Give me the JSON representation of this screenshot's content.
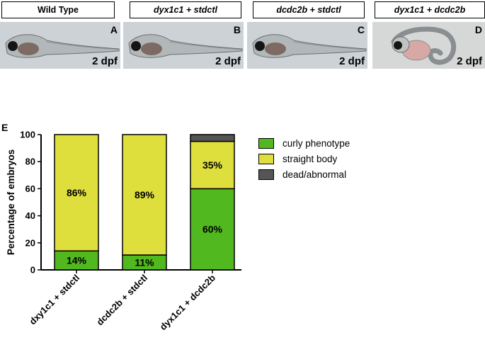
{
  "panels": [
    {
      "label": "Wild Type",
      "italic": false,
      "letter": "A",
      "stage": "2 dpf",
      "phenotype": "straight"
    },
    {
      "label": "dyx1c1 + stdctl",
      "italic": true,
      "letter": "B",
      "stage": "2 dpf",
      "phenotype": "straight"
    },
    {
      "label": "dcdc2b + stdctl",
      "italic": true,
      "letter": "C",
      "stage": "2 dpf",
      "phenotype": "straight"
    },
    {
      "label": "dyx1c1 + dcdc2b",
      "italic": true,
      "letter": "D",
      "stage": "2 dpf",
      "phenotype": "curly"
    }
  ],
  "panel_e_letter": "E",
  "colors": {
    "curly": "#52b81f",
    "straight": "#dede3c",
    "dead": "#555555"
  },
  "chart_data": {
    "type": "bar",
    "stacked": true,
    "categories": [
      "dxy1c1 + stdctl",
      "dcdc2b  + stdctl",
      "dyx1c1 + dcdc2b"
    ],
    "series": [
      {
        "name": "curly phenotype",
        "values": [
          14,
          11,
          60
        ],
        "labels": [
          "14%",
          "11%",
          "60%"
        ]
      },
      {
        "name": "straight body",
        "values": [
          86,
          89,
          35
        ],
        "labels": [
          "86%",
          "89%",
          "35%"
        ]
      },
      {
        "name": "dead/abnormal",
        "values": [
          0,
          0,
          5
        ],
        "labels": [
          "",
          "",
          ""
        ]
      }
    ],
    "ylabel": "Percentage of embryos",
    "yticks": [
      0,
      20,
      40,
      60,
      80,
      100
    ],
    "ylim": [
      0,
      100
    ],
    "legend": "right"
  }
}
